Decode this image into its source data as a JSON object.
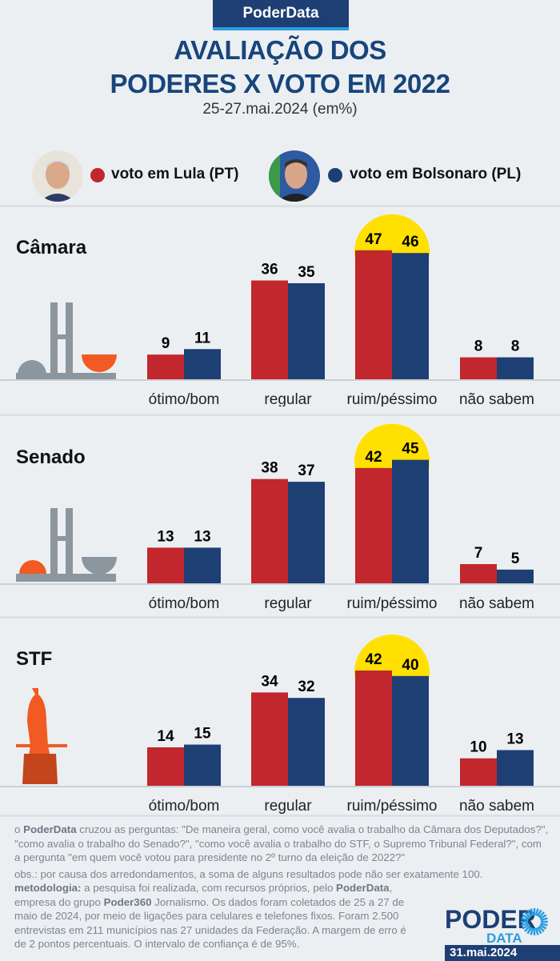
{
  "brand": "PoderData",
  "title_line1": "AVALIAÇÃO DOS",
  "title_line2": "PODERES X VOTO EM 2022",
  "subtitle": "25-27.mai.2024 (em%)",
  "colors": {
    "lula": "#c1272d",
    "bolsonaro": "#1d3f74",
    "highlight": "#ffe000"
  },
  "chart_data": {
    "type": "bar",
    "title": "AVALIAÇÃO DOS PODERES X VOTO EM 2022",
    "categories": [
      "ótimo/bom",
      "regular",
      "ruim/péssimo",
      "não sabem"
    ],
    "legend": [
      "voto em Lula (PT)",
      "voto em Bolsonaro (PL)"
    ],
    "highlighted_category": "ruim/péssimo",
    "panels": [
      {
        "name": "Câmara",
        "series": [
          {
            "name": "voto em Lula (PT)",
            "values": [
              9,
              36,
              47,
              8
            ]
          },
          {
            "name": "voto em Bolsonaro (PL)",
            "values": [
              11,
              35,
              46,
              8
            ]
          }
        ]
      },
      {
        "name": "Senado",
        "series": [
          {
            "name": "voto em Lula (PT)",
            "values": [
              13,
              38,
              42,
              7
            ]
          },
          {
            "name": "voto em Bolsonaro (PL)",
            "values": [
              13,
              37,
              45,
              5
            ]
          }
        ]
      },
      {
        "name": "STF",
        "series": [
          {
            "name": "voto em Lula (PT)",
            "values": [
              14,
              34,
              42,
              10
            ]
          },
          {
            "name": "voto em Bolsonaro (PL)",
            "values": [
              15,
              32,
              40,
              13
            ]
          }
        ]
      }
    ]
  },
  "footer": {
    "q_prefix": "o ",
    "q_brand": "PoderData",
    "q_text": " cruzou as perguntas: \"De maneira geral, como você avalia o trabalho da Câmara dos Deputados?\", \"como avalia o trabalho do Senado?\", \"como você avalia o trabalho do STF, o Supremo Tribunal Federal?\", com a pergunta \"em quem você votou para presidente no 2º turno da eleição de 2022?\"",
    "obs": "obs.: por causa dos arredondamentos, a soma de alguns resultados pode não ser exatamente 100.",
    "meth_label": "metodologia:",
    "meth_1": " a pesquisa foi realizada, com recursos próprios, pelo ",
    "meth_brand": "PoderData",
    "meth_2": ", empresa do grupo ",
    "meth_group": "Poder360",
    "meth_3": " Jornalismo. Os dados foram coletados de 25 a 27 de maio de 2024, por meio de ligações para celulares e telefones fixos. Foram 2.500 entrevistas em 211 municípios nas 27 unidades da Federação. A margem de erro é de 2 pontos percentuais. O intervalo de confiança é de 95%.",
    "logo_top": "PODER",
    "logo_bottom": "DATA",
    "date": "31.mai.2024"
  }
}
